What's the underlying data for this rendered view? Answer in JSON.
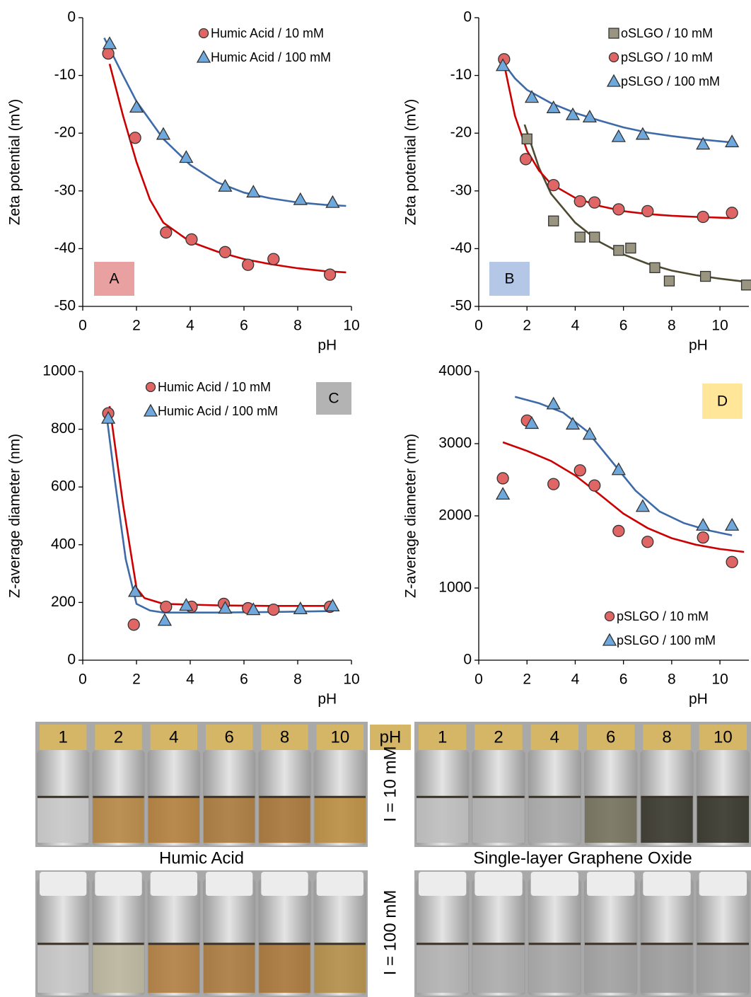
{
  "chart_data": [
    {
      "type": "scatter",
      "panel_label": "A",
      "panel_color": "#e8a0a0",
      "ylabel": "Zeta potential (mV)",
      "xlabel": "pH",
      "xlim": [
        0,
        10
      ],
      "xticks": [
        0,
        2,
        4,
        6,
        8,
        10
      ],
      "ylim": [
        -50,
        0
      ],
      "yticks": [
        0,
        -10,
        -20,
        -30,
        -40,
        -50
      ],
      "legend": "upper right",
      "series": [
        {
          "name": "Humic Acid / 10 mM",
          "color": "#e06666",
          "marker": "circle",
          "x": [
            0.95,
            1.95,
            3.1,
            4.05,
            5.3,
            6.15,
            7.1,
            9.2
          ],
          "values": [
            -6.2,
            -20.8,
            -37.2,
            -38.4,
            -40.6,
            -42.8,
            -41.8,
            -44.5
          ]
        },
        {
          "name": "Humic Acid / 100 mM",
          "color": "#6fa8dc",
          "marker": "triangle",
          "x": [
            1,
            2,
            3,
            3.85,
            5.3,
            6.35,
            8.1,
            9.3
          ],
          "values": [
            -4.5,
            -15.5,
            -20.2,
            -24.2,
            -29.2,
            -30.2,
            -31.5,
            -32
          ]
        }
      ],
      "fits": [
        {
          "color": "#cc0000",
          "x": [
            1,
            1.5,
            2,
            2.5,
            3,
            4,
            5,
            6,
            7,
            8,
            9,
            9.8
          ],
          "values": [
            -8,
            -17,
            -25,
            -31.5,
            -35.5,
            -38.8,
            -40.5,
            -41.8,
            -42.7,
            -43.4,
            -43.9,
            -44.1
          ]
        },
        {
          "color": "#3d6aa8",
          "x": [
            0.8,
            1.5,
            2,
            3,
            4,
            5,
            6,
            7,
            8,
            9,
            9.8
          ],
          "values": [
            -3.5,
            -10,
            -14.5,
            -21,
            -25.5,
            -28.5,
            -30.3,
            -31.3,
            -32,
            -32.4,
            -32.6
          ]
        }
      ]
    },
    {
      "type": "scatter",
      "panel_label": "B",
      "panel_color": "#b4c7e7",
      "ylabel": "Zeta potential (mV)",
      "xlabel": "pH",
      "xlim": [
        0,
        11.2
      ],
      "xticks": [
        0,
        2,
        4,
        6,
        8,
        10
      ],
      "ylim": [
        -50,
        0
      ],
      "yticks": [
        0,
        -10,
        -20,
        -30,
        -40,
        -50
      ],
      "legend": "upper right",
      "series": [
        {
          "name": "oSLGO / 10 mM",
          "color": "#9a9580",
          "marker": "square",
          "x": [
            2,
            3.1,
            4.2,
            4.8,
            5.8,
            6.3,
            7.3,
            7.9,
            9.4,
            11.1
          ],
          "values": [
            -21,
            -35.2,
            -38,
            -38,
            -40.3,
            -39.9,
            -43.3,
            -45.6,
            -44.8,
            -46.3
          ]
        },
        {
          "name": "pSLGO / 10 mM",
          "color": "#e06666",
          "marker": "circle",
          "x": [
            1.05,
            1.95,
            3.1,
            4.2,
            4.8,
            5.8,
            7,
            9.3,
            10.5
          ],
          "values": [
            -7.2,
            -24.5,
            -29,
            -31.8,
            -32,
            -33.2,
            -33.5,
            -34.5,
            -33.8
          ]
        },
        {
          "name": "pSLGO / 100 mM",
          "color": "#6fa8dc",
          "marker": "triangle",
          "x": [
            1,
            2.2,
            3.1,
            3.9,
            4.6,
            5.8,
            6.8,
            9.3,
            10.5
          ],
          "values": [
            -8.3,
            -13.8,
            -15.6,
            -16.8,
            -17.2,
            -20.6,
            -20.2,
            -21.9,
            -21.5
          ]
        }
      ],
      "fits": [
        {
          "color": "#4d4a30",
          "x": [
            1.9,
            2.5,
            3,
            4,
            5,
            6,
            7,
            8,
            9,
            10,
            11
          ],
          "values": [
            -18.5,
            -26,
            -30.5,
            -35.5,
            -38.8,
            -41,
            -42.6,
            -43.8,
            -44.6,
            -45.2,
            -45.7
          ]
        },
        {
          "color": "#cc0000",
          "x": [
            1.05,
            1.5,
            2,
            2.5,
            3,
            4,
            5,
            6,
            7,
            8,
            9,
            10.5
          ],
          "values": [
            -8,
            -17,
            -23,
            -26.5,
            -28.8,
            -31.2,
            -32.6,
            -33.5,
            -34,
            -34.3,
            -34.5,
            -34.7
          ]
        },
        {
          "color": "#3d6aa8",
          "x": [
            1.05,
            1.5,
            2,
            3,
            4,
            5,
            6,
            7,
            8,
            9,
            10.5
          ],
          "values": [
            -8,
            -10.5,
            -12.5,
            -14.8,
            -16.5,
            -17.8,
            -19,
            -19.9,
            -20.5,
            -21,
            -21.6
          ]
        }
      ]
    },
    {
      "type": "scatter",
      "panel_label": "C",
      "panel_color": "#b3b3b3",
      "ylabel": "Z-average diameter (nm)",
      "xlabel": "pH",
      "xlim": [
        0,
        10
      ],
      "xticks": [
        0,
        2,
        4,
        6,
        8,
        10
      ],
      "ylim": [
        0,
        1000
      ],
      "yticks": [
        0,
        200,
        400,
        600,
        800,
        1000
      ],
      "legend": "upper right",
      "series": [
        {
          "name": "Humic Acid / 10 mM",
          "color": "#e06666",
          "marker": "circle",
          "x": [
            0.95,
            1.9,
            3.1,
            4.05,
            5.25,
            6.15,
            7.1,
            9.2
          ],
          "values": [
            855,
            123,
            185,
            185,
            195,
            180,
            175,
            185
          ]
        },
        {
          "name": "Humic Acid / 100 mM",
          "color": "#6fa8dc",
          "marker": "triangle",
          "x": [
            0.95,
            1.95,
            3.05,
            3.85,
            5.3,
            6.35,
            8.1,
            9.3
          ],
          "values": [
            838,
            238,
            138,
            190,
            180,
            175,
            178,
            188
          ]
        }
      ],
      "fits": [
        {
          "color": "#cc0000",
          "x": [
            1,
            1.5,
            2,
            2.3,
            3,
            5,
            7,
            9.3
          ],
          "values": [
            880,
            540,
            250,
            215,
            195,
            190,
            188,
            188
          ]
        },
        {
          "color": "#3d6aa8",
          "x": [
            0.9,
            1.2,
            1.6,
            2,
            2.5,
            3,
            5,
            7,
            9.3
          ],
          "values": [
            840,
            620,
            350,
            195,
            172,
            165,
            165,
            167,
            170
          ]
        }
      ]
    },
    {
      "type": "scatter",
      "panel_label": "D",
      "panel_color": "#ffe699",
      "ylabel": "Z-average diameter (nm)",
      "xlabel": "pH",
      "xlim": [
        0,
        11.2
      ],
      "xticks": [
        0,
        2,
        4,
        6,
        8,
        10
      ],
      "ylim": [
        0,
        4000
      ],
      "yticks": [
        0,
        1000,
        2000,
        3000,
        4000
      ],
      "legend": "lower right",
      "series": [
        {
          "name": "pSLGO / 10 mM",
          "color": "#e06666",
          "marker": "circle",
          "x": [
            1,
            2,
            3.1,
            4.2,
            4.8,
            5.8,
            7,
            9.3,
            10.5
          ],
          "values": [
            2520,
            3320,
            2440,
            2630,
            2420,
            1790,
            1640,
            1700,
            1360
          ]
        },
        {
          "name": "pSLGO / 100 mM",
          "color": "#6fa8dc",
          "marker": "triangle",
          "x": [
            1,
            2.2,
            3.1,
            3.9,
            4.6,
            5.8,
            6.8,
            9.3,
            10.5
          ],
          "values": [
            2300,
            3280,
            3550,
            3270,
            3130,
            2640,
            2130,
            1870,
            1870
          ]
        }
      ],
      "fits": [
        {
          "color": "#cc0000",
          "x": [
            1,
            2,
            3,
            4,
            5,
            6,
            7,
            8,
            9,
            10,
            11
          ],
          "values": [
            3020,
            2900,
            2760,
            2560,
            2300,
            2030,
            1830,
            1690,
            1600,
            1540,
            1500
          ]
        },
        {
          "color": "#3d6aa8",
          "x": [
            1.5,
            2.5,
            3.5,
            4.5,
            5.5,
            6.5,
            7.5,
            8.5,
            9.5,
            10.5
          ],
          "values": [
            3650,
            3560,
            3430,
            3170,
            2760,
            2350,
            2060,
            1900,
            1800,
            1730
          ]
        }
      ]
    }
  ],
  "photos": {
    "ph_header": "pH",
    "rows": [
      "I = 10 mM",
      "I = 100 mM"
    ],
    "panels": [
      {
        "name": "Humic Acid",
        "ph_labels": [
          "1",
          "2",
          "4",
          "6",
          "8",
          "10"
        ]
      },
      {
        "name": "Single-layer Graphene Oxide",
        "ph_labels": [
          "1",
          "2",
          "4",
          "6",
          "8",
          "10"
        ]
      }
    ]
  }
}
